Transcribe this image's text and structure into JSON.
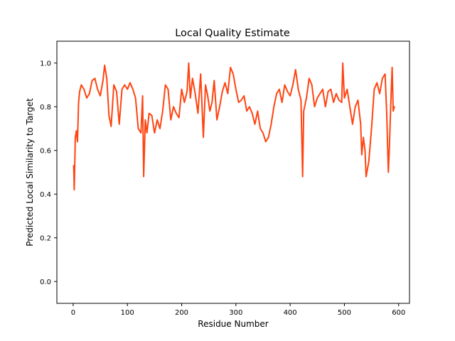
{
  "chart_data": {
    "type": "line",
    "title": "Local Quality Estimate",
    "xlabel": "Residue Number",
    "ylabel": "Predicted Local Similarity to Target",
    "xlim": [
      -30,
      620
    ],
    "ylim": [
      -0.1,
      1.1
    ],
    "xticks": [
      0,
      100,
      200,
      300,
      400,
      500,
      600
    ],
    "yticks": [
      0.0,
      0.2,
      0.4,
      0.6,
      0.8,
      1.0
    ],
    "xtick_labels": [
      "0",
      "100",
      "200",
      "300",
      "400",
      "500",
      "600"
    ],
    "ytick_labels": [
      "0.0",
      "0.2",
      "0.4",
      "0.6",
      "0.8",
      "1.0"
    ],
    "grid": false,
    "line_color": "#ff4411",
    "series": [
      {
        "x": [
          1,
          2,
          4,
          6,
          8,
          10,
          12,
          15,
          20,
          25,
          30,
          35,
          40,
          45,
          50,
          55,
          58,
          62,
          66,
          70,
          75,
          80,
          85,
          90,
          95,
          100,
          105,
          110,
          115,
          120,
          125,
          128,
          130,
          133,
          136,
          140,
          145,
          150,
          155,
          160,
          165,
          170,
          175,
          180,
          185,
          190,
          195,
          200,
          205,
          210,
          213,
          216,
          220,
          225,
          230,
          235,
          240,
          244,
          248,
          252,
          256,
          260,
          265,
          270,
          275,
          280,
          285,
          290,
          295,
          300,
          305,
          310,
          315,
          320,
          325,
          330,
          335,
          340,
          345,
          350,
          355,
          360,
          365,
          370,
          375,
          380,
          385,
          390,
          395,
          400,
          405,
          410,
          415,
          420,
          423,
          425,
          430,
          435,
          440,
          445,
          450,
          455,
          460,
          465,
          470,
          475,
          480,
          485,
          490,
          495,
          497,
          500,
          505,
          510,
          515,
          520,
          525,
          530,
          532,
          535,
          538,
          540,
          545,
          550,
          555,
          560,
          565,
          570,
          575,
          578,
          581,
          583,
          586,
          588,
          590,
          592
        ],
        "y": [
          0.53,
          0.42,
          0.66,
          0.69,
          0.64,
          0.82,
          0.87,
          0.9,
          0.88,
          0.84,
          0.86,
          0.92,
          0.93,
          0.88,
          0.85,
          0.92,
          0.99,
          0.93,
          0.76,
          0.71,
          0.9,
          0.87,
          0.72,
          0.88,
          0.9,
          0.88,
          0.91,
          0.88,
          0.84,
          0.7,
          0.68,
          0.85,
          0.48,
          0.74,
          0.68,
          0.77,
          0.76,
          0.68,
          0.74,
          0.7,
          0.78,
          0.9,
          0.88,
          0.74,
          0.8,
          0.77,
          0.75,
          0.88,
          0.82,
          0.87,
          1.0,
          0.84,
          0.93,
          0.86,
          0.77,
          0.95,
          0.66,
          0.9,
          0.85,
          0.78,
          0.82,
          0.92,
          0.74,
          0.8,
          0.87,
          0.91,
          0.86,
          0.98,
          0.95,
          0.88,
          0.82,
          0.83,
          0.85,
          0.78,
          0.8,
          0.77,
          0.72,
          0.78,
          0.7,
          0.68,
          0.64,
          0.66,
          0.72,
          0.8,
          0.86,
          0.88,
          0.82,
          0.9,
          0.87,
          0.85,
          0.9,
          0.97,
          0.88,
          0.83,
          0.48,
          0.78,
          0.84,
          0.93,
          0.9,
          0.8,
          0.84,
          0.86,
          0.88,
          0.8,
          0.87,
          0.88,
          0.82,
          0.86,
          0.83,
          0.82,
          1.0,
          0.84,
          0.88,
          0.8,
          0.72,
          0.8,
          0.83,
          0.72,
          0.58,
          0.66,
          0.6,
          0.48,
          0.55,
          0.7,
          0.88,
          0.91,
          0.86,
          0.93,
          0.95,
          0.77,
          0.5,
          0.62,
          0.85,
          0.98,
          0.78,
          0.8
        ]
      }
    ]
  }
}
